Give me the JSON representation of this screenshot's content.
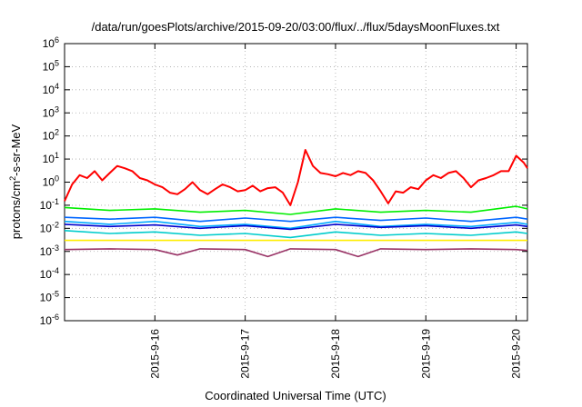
{
  "chart_data": {
    "type": "line",
    "title": "/data/run/goesPlots/archive/2015-09-20/03:00/flux/../flux/5daysMoonFluxes.txt",
    "xlabel": "Coordinated Universal Time (UTC)",
    "ylabel": {
      "prefix": "protons/cm",
      "sup": "2",
      "suffix": "-s-sr-MeV"
    },
    "y_scale": "log",
    "ylim": [
      1e-06,
      1000000.0
    ],
    "y_ticks": [
      {
        "value": 1e-06,
        "base": "10",
        "exp": "-6"
      },
      {
        "value": 1e-05,
        "base": "10",
        "exp": "-5"
      },
      {
        "value": 0.0001,
        "base": "10",
        "exp": "-4"
      },
      {
        "value": 0.001,
        "base": "10",
        "exp": "-3"
      },
      {
        "value": 0.01,
        "base": "10",
        "exp": "-2"
      },
      {
        "value": 0.1,
        "base": "10",
        "exp": "-1"
      },
      {
        "value": 1.0,
        "base": "10",
        "exp": "0"
      },
      {
        "value": 10.0,
        "base": "10",
        "exp": "1"
      },
      {
        "value": 100.0,
        "base": "10",
        "exp": "2"
      },
      {
        "value": 1000.0,
        "base": "10",
        "exp": "3"
      },
      {
        "value": 10000.0,
        "base": "10",
        "exp": "4"
      },
      {
        "value": 100000.0,
        "base": "10",
        "exp": "5"
      },
      {
        "value": 1000000.0,
        "base": "10",
        "exp": "6"
      }
    ],
    "xlim": [
      "2015-09-15T00:00",
      "2015-09-20T03:00"
    ],
    "x_ticks": [
      {
        "value": "2015-09-16T00:00",
        "label": "2015-9-16"
      },
      {
        "value": "2015-09-17T00:00",
        "label": "2015-9-17"
      },
      {
        "value": "2015-09-18T00:00",
        "label": "2015-9-18"
      },
      {
        "value": "2015-09-19T00:00",
        "label": "2015-9-19"
      },
      {
        "value": "2015-09-20T00:00",
        "label": "2015-9-20"
      }
    ],
    "grid": true,
    "series": [
      {
        "color": "#ff0000",
        "x": [
          "2015-09-15T00:00",
          "2015-09-15T02:00",
          "2015-09-15T04:00",
          "2015-09-15T06:00",
          "2015-09-15T08:00",
          "2015-09-15T10:00",
          "2015-09-15T12:00",
          "2015-09-15T14:00",
          "2015-09-15T16:00",
          "2015-09-15T18:00",
          "2015-09-15T20:00",
          "2015-09-15T22:00",
          "2015-09-16T00:00",
          "2015-09-16T02:00",
          "2015-09-16T04:00",
          "2015-09-16T06:00",
          "2015-09-16T08:00",
          "2015-09-16T10:00",
          "2015-09-16T12:00",
          "2015-09-16T14:00",
          "2015-09-16T16:00",
          "2015-09-16T18:00",
          "2015-09-16T20:00",
          "2015-09-16T22:00",
          "2015-09-17T00:00",
          "2015-09-17T02:00",
          "2015-09-17T04:00",
          "2015-09-17T06:00",
          "2015-09-17T08:00",
          "2015-09-17T10:00",
          "2015-09-17T12:00",
          "2015-09-17T14:00",
          "2015-09-17T16:00",
          "2015-09-17T18:00",
          "2015-09-17T20:00",
          "2015-09-17T22:00",
          "2015-09-18T00:00",
          "2015-09-18T02:00",
          "2015-09-18T04:00",
          "2015-09-18T06:00",
          "2015-09-18T08:00",
          "2015-09-18T10:00",
          "2015-09-18T12:00",
          "2015-09-18T14:00",
          "2015-09-18T16:00",
          "2015-09-18T18:00",
          "2015-09-18T20:00",
          "2015-09-18T22:00",
          "2015-09-19T00:00",
          "2015-09-19T02:00",
          "2015-09-19T04:00",
          "2015-09-19T06:00",
          "2015-09-19T08:00",
          "2015-09-19T10:00",
          "2015-09-19T12:00",
          "2015-09-19T14:00",
          "2015-09-19T16:00",
          "2015-09-19T18:00",
          "2015-09-19T20:00",
          "2015-09-19T22:00",
          "2015-09-20T00:00",
          "2015-09-20T02:00",
          "2015-09-20T03:00"
        ],
        "values": [
          0.15,
          0.8,
          2,
          1.5,
          3,
          1.2,
          2.5,
          5,
          4,
          3,
          1.5,
          1.2,
          0.8,
          0.6,
          0.35,
          0.3,
          0.5,
          1,
          0.45,
          0.3,
          0.5,
          0.8,
          0.6,
          0.4,
          0.45,
          0.7,
          0.4,
          0.55,
          0.6,
          0.35,
          0.1,
          1,
          25,
          5,
          2.5,
          2.2,
          1.8,
          2.5,
          2,
          3,
          2.5,
          1.2,
          0.4,
          0.12,
          0.4,
          0.35,
          0.6,
          0.5,
          1.2,
          2,
          1.5,
          2.5,
          3,
          1.5,
          0.6,
          1.2,
          1.5,
          2,
          3,
          3,
          14,
          7,
          4
        ]
      },
      {
        "color": "#00ee00",
        "x": [
          "2015-09-15T00:00",
          "2015-09-15T12:00",
          "2015-09-16T00:00",
          "2015-09-16T12:00",
          "2015-09-17T00:00",
          "2015-09-17T12:00",
          "2015-09-18T00:00",
          "2015-09-18T12:00",
          "2015-09-19T00:00",
          "2015-09-19T12:00",
          "2015-09-20T00:00",
          "2015-09-20T03:00"
        ],
        "values": [
          0.08,
          0.06,
          0.07,
          0.05,
          0.06,
          0.04,
          0.07,
          0.05,
          0.06,
          0.05,
          0.09,
          0.07
        ]
      },
      {
        "color": "#00aaff",
        "x": [
          "2015-09-15T00:00",
          "2015-09-15T12:00",
          "2015-09-16T00:00",
          "2015-09-16T12:00",
          "2015-09-17T00:00",
          "2015-09-17T12:00",
          "2015-09-18T00:00",
          "2015-09-18T12:00",
          "2015-09-19T00:00",
          "2015-09-19T12:00",
          "2015-09-20T00:00",
          "2015-09-20T03:00"
        ],
        "values": [
          0.02,
          0.015,
          0.02,
          0.012,
          0.015,
          0.01,
          0.02,
          0.012,
          0.015,
          0.012,
          0.018,
          0.015
        ]
      },
      {
        "color": "#0000cc",
        "x": [
          "2015-09-15T00:00",
          "2015-09-15T12:00",
          "2015-09-16T00:00",
          "2015-09-16T12:00",
          "2015-09-17T00:00",
          "2015-09-17T12:00",
          "2015-09-18T00:00",
          "2015-09-18T12:00",
          "2015-09-19T00:00",
          "2015-09-19T12:00",
          "2015-09-20T00:00",
          "2015-09-20T03:00"
        ],
        "values": [
          0.015,
          0.012,
          0.014,
          0.01,
          0.013,
          0.009,
          0.015,
          0.011,
          0.013,
          0.01,
          0.014,
          0.012
        ]
      },
      {
        "color": "#0066ff",
        "x": [
          "2015-09-15T00:00",
          "2015-09-15T12:00",
          "2015-09-16T00:00",
          "2015-09-16T12:00",
          "2015-09-17T00:00",
          "2015-09-17T12:00",
          "2015-09-18T00:00",
          "2015-09-18T12:00",
          "2015-09-19T00:00",
          "2015-09-19T12:00",
          "2015-09-20T00:00",
          "2015-09-20T03:00"
        ],
        "values": [
          0.03,
          0.025,
          0.03,
          0.02,
          0.028,
          0.02,
          0.03,
          0.022,
          0.028,
          0.02,
          0.03,
          0.025
        ]
      },
      {
        "color": "#00cccc",
        "x": [
          "2015-09-15T00:00",
          "2015-09-15T12:00",
          "2015-09-16T00:00",
          "2015-09-16T12:00",
          "2015-09-17T00:00",
          "2015-09-17T12:00",
          "2015-09-18T00:00",
          "2015-09-18T12:00",
          "2015-09-19T00:00",
          "2015-09-19T12:00",
          "2015-09-20T00:00",
          "2015-09-20T03:00"
        ],
        "values": [
          0.008,
          0.006,
          0.007,
          0.005,
          0.006,
          0.004,
          0.007,
          0.005,
          0.006,
          0.005,
          0.007,
          0.006
        ]
      },
      {
        "color": "#ffee00",
        "x": [
          "2015-09-15T00:00",
          "2015-09-16T00:00",
          "2015-09-17T00:00",
          "2015-09-18T00:00",
          "2015-09-19T00:00",
          "2015-09-20T00:00",
          "2015-09-20T03:00"
        ],
        "values": [
          0.003,
          0.003,
          0.003,
          0.003,
          0.003,
          0.003,
          0.003
        ]
      },
      {
        "color": "#993366",
        "x": [
          "2015-09-15T00:00",
          "2015-09-15T12:00",
          "2015-09-16T00:00",
          "2015-09-16T06:00",
          "2015-09-16T12:00",
          "2015-09-17T00:00",
          "2015-09-17T06:00",
          "2015-09-17T12:00",
          "2015-09-18T00:00",
          "2015-09-18T06:00",
          "2015-09-18T12:00",
          "2015-09-19T00:00",
          "2015-09-19T12:00",
          "2015-09-20T00:00",
          "2015-09-20T03:00"
        ],
        "values": [
          0.0012,
          0.0013,
          0.0012,
          0.0007,
          0.0013,
          0.0012,
          0.0006,
          0.0013,
          0.0012,
          0.0006,
          0.0013,
          0.0012,
          0.0013,
          0.0012,
          0.0011
        ]
      }
    ]
  }
}
